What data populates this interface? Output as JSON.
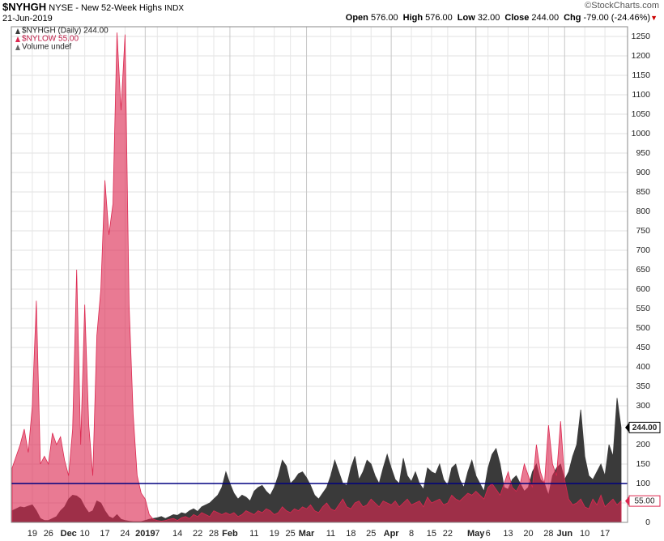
{
  "chart_data": {
    "type": "area",
    "symbol": "$NYHGH",
    "description": "NYSE - New 52-Week Highs",
    "exchange": "INDX",
    "date": "21-Jun-2019",
    "watermark": "©StockCharts.com",
    "quote": [
      {
        "label": "Open",
        "value": "576.00"
      },
      {
        "label": "High",
        "value": "576.00"
      },
      {
        "label": "Low",
        "value": "32.00"
      },
      {
        "label": "Close",
        "value": "244.00"
      },
      {
        "label": "Chg",
        "value": "-79.00 (-24.46%)"
      }
    ],
    "legend_extra": "Volume undef",
    "categories": [
      null,
      null,
      null,
      null,
      null,
      "19",
      null,
      null,
      null,
      "26",
      null,
      null,
      null,
      null,
      "Dec",
      null,
      null,
      null,
      "10",
      null,
      null,
      null,
      null,
      "17",
      null,
      null,
      null,
      null,
      "24",
      null,
      null,
      null,
      null,
      "2019",
      null,
      null,
      "7",
      null,
      null,
      null,
      null,
      "14",
      null,
      null,
      null,
      null,
      "22",
      null,
      null,
      null,
      "28",
      null,
      null,
      null,
      "Feb",
      null,
      null,
      null,
      null,
      null,
      "11",
      null,
      null,
      null,
      null,
      "19",
      null,
      null,
      null,
      "25",
      null,
      null,
      null,
      "Mar",
      null,
      null,
      null,
      null,
      null,
      "11",
      null,
      null,
      null,
      null,
      "18",
      null,
      null,
      null,
      null,
      "25",
      null,
      null,
      null,
      null,
      "Apr",
      null,
      null,
      null,
      null,
      "8",
      null,
      null,
      null,
      null,
      "15",
      null,
      null,
      null,
      "22",
      null,
      null,
      null,
      null,
      null,
      null,
      "May",
      null,
      null,
      "6",
      null,
      null,
      null,
      null,
      "13",
      null,
      null,
      null,
      null,
      "20",
      null,
      null,
      null,
      null,
      "28",
      null,
      null,
      null,
      "Jun",
      null,
      null,
      null,
      null,
      "10",
      null,
      null,
      null,
      null,
      "17",
      null,
      null,
      null,
      null
    ],
    "series": [
      {
        "name": "$NYHGH (Daily) 244.00",
        "color": "#3a3a3a",
        "last_label": "244.00",
        "values": [
          30,
          35,
          40,
          38,
          42,
          45,
          30,
          10,
          5,
          5,
          10,
          15,
          30,
          40,
          60,
          70,
          68,
          60,
          40,
          25,
          30,
          55,
          50,
          30,
          15,
          10,
          20,
          8,
          5,
          3,
          2,
          2,
          2,
          5,
          8,
          10,
          12,
          15,
          10,
          15,
          20,
          18,
          25,
          22,
          30,
          35,
          28,
          40,
          45,
          50,
          60,
          70,
          90,
          130,
          100,
          75,
          60,
          70,
          65,
          55,
          80,
          90,
          95,
          80,
          70,
          90,
          120,
          160,
          145,
          100,
          110,
          125,
          130,
          115,
          95,
          70,
          60,
          75,
          90,
          120,
          160,
          130,
          100,
          95,
          140,
          170,
          110,
          130,
          160,
          150,
          120,
          100,
          140,
          175,
          140,
          110,
          100,
          165,
          120,
          105,
          130,
          100,
          85,
          140,
          130,
          125,
          150,
          110,
          95,
          140,
          150,
          110,
          90,
          130,
          160,
          120,
          100,
          80,
          140,
          175,
          190,
          150,
          90,
          85,
          110,
          120,
          100,
          80,
          90,
          130,
          150,
          110,
          100,
          70,
          120,
          140,
          150,
          110,
          130,
          170,
          200,
          290,
          170,
          120,
          110,
          130,
          150,
          120,
          200,
          170,
          320,
          244
        ]
      },
      {
        "name": "$NYLOW 55.00",
        "color": "#dc2850",
        "last_label": "55.00",
        "values": [
          140,
          170,
          200,
          240,
          180,
          300,
          570,
          150,
          170,
          150,
          230,
          200,
          220,
          160,
          120,
          240,
          650,
          200,
          560,
          250,
          120,
          480,
          600,
          880,
          740,
          820,
          1260,
          1060,
          1255,
          560,
          280,
          120,
          75,
          60,
          20,
          8,
          5,
          3,
          5,
          8,
          10,
          5,
          12,
          15,
          10,
          20,
          15,
          25,
          20,
          15,
          30,
          25,
          20,
          25,
          20,
          25,
          15,
          20,
          30,
          25,
          20,
          30,
          25,
          35,
          30,
          20,
          25,
          40,
          30,
          25,
          35,
          30,
          40,
          35,
          45,
          30,
          25,
          40,
          50,
          35,
          30,
          45,
          60,
          40,
          35,
          50,
          55,
          40,
          45,
          60,
          50,
          40,
          55,
          50,
          45,
          55,
          40,
          50,
          60,
          45,
          50,
          55,
          40,
          65,
          50,
          55,
          60,
          45,
          50,
          70,
          60,
          55,
          65,
          75,
          70,
          80,
          70,
          60,
          90,
          100,
          85,
          70,
          100,
          130,
          90,
          80,
          100,
          150,
          120,
          90,
          200,
          130,
          100,
          250,
          150,
          120,
          260,
          110,
          60,
          45,
          50,
          60,
          40,
          35,
          60,
          45,
          70,
          40,
          50,
          60,
          45,
          55
        ]
      }
    ],
    "reference_line": 100,
    "reference_color": "#000080",
    "ylim": [
      0,
      1275
    ],
    "yticks": [
      0,
      50,
      100,
      150,
      200,
      250,
      300,
      350,
      400,
      450,
      500,
      550,
      600,
      650,
      700,
      750,
      800,
      850,
      900,
      950,
      1000,
      1050,
      1100,
      1150,
      1200,
      1250
    ],
    "grid": true
  }
}
